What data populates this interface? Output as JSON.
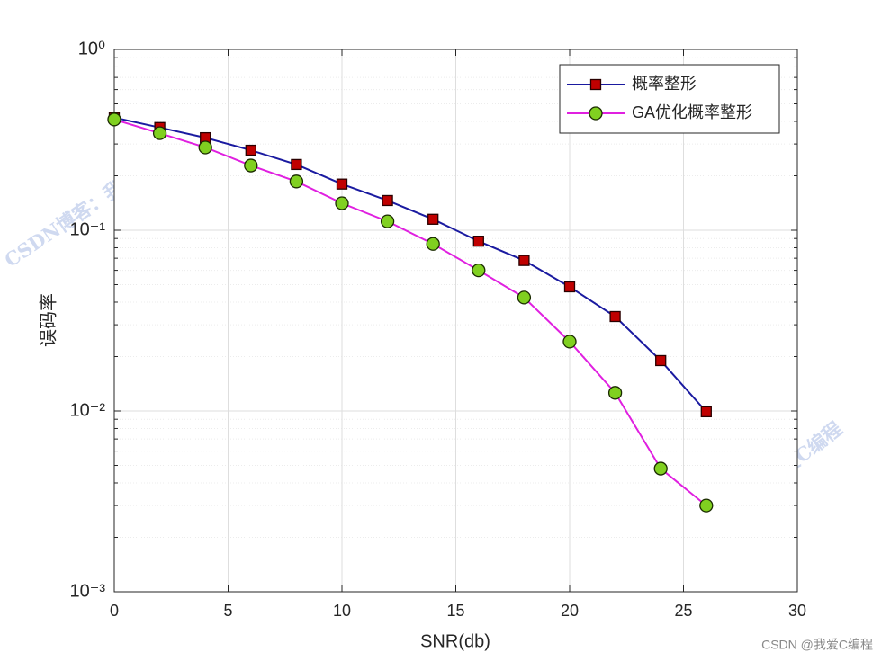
{
  "chart_data": {
    "type": "line",
    "xlabel": "SNR(db)",
    "ylabel": "误码率",
    "x": [
      0,
      2,
      4,
      6,
      8,
      10,
      12,
      14,
      16,
      18,
      20,
      22,
      24,
      26
    ],
    "series": [
      {
        "name": "概率整形",
        "color": "#1a1aa0",
        "marker": "square",
        "marker_color": "#c00000",
        "values": [
          0.42,
          0.37,
          0.325,
          0.277,
          0.231,
          0.18,
          0.146,
          0.115,
          0.087,
          0.068,
          0.0486,
          0.0333,
          0.019,
          0.0099
        ]
      },
      {
        "name": "GA优化概率整形",
        "color": "#e020e0",
        "marker": "circle",
        "marker_color": "#80d020",
        "values": [
          0.41,
          0.344,
          0.287,
          0.228,
          0.186,
          0.141,
          0.112,
          0.084,
          0.06,
          0.0424,
          0.0242,
          0.0126,
          0.0048,
          0.003
        ]
      }
    ],
    "xlim": [
      0,
      30
    ],
    "xticks": [
      0,
      5,
      10,
      15,
      20,
      25,
      30
    ],
    "ylim": [
      0.001,
      1
    ],
    "log_y": true,
    "yticks": [
      {
        "value": 0.001,
        "label": "10⁻³"
      },
      {
        "value": 0.01,
        "label": "10⁻²"
      },
      {
        "value": 0.1,
        "label": "10⁻¹"
      },
      {
        "value": 1,
        "label": "10⁰"
      }
    ],
    "yminorticks": [
      0.002,
      0.003,
      0.004,
      0.005,
      0.006,
      0.007,
      0.008,
      0.009,
      0.02,
      0.03,
      0.04,
      0.05,
      0.06,
      0.07,
      0.08,
      0.09,
      0.2,
      0.3,
      0.4,
      0.5,
      0.6,
      0.7,
      0.8,
      0.9
    ],
    "grid": true,
    "legend": "top-right"
  },
  "watermark": "CSDN博客：我爱C编程",
  "credit": "CSDN @我爱C编程"
}
